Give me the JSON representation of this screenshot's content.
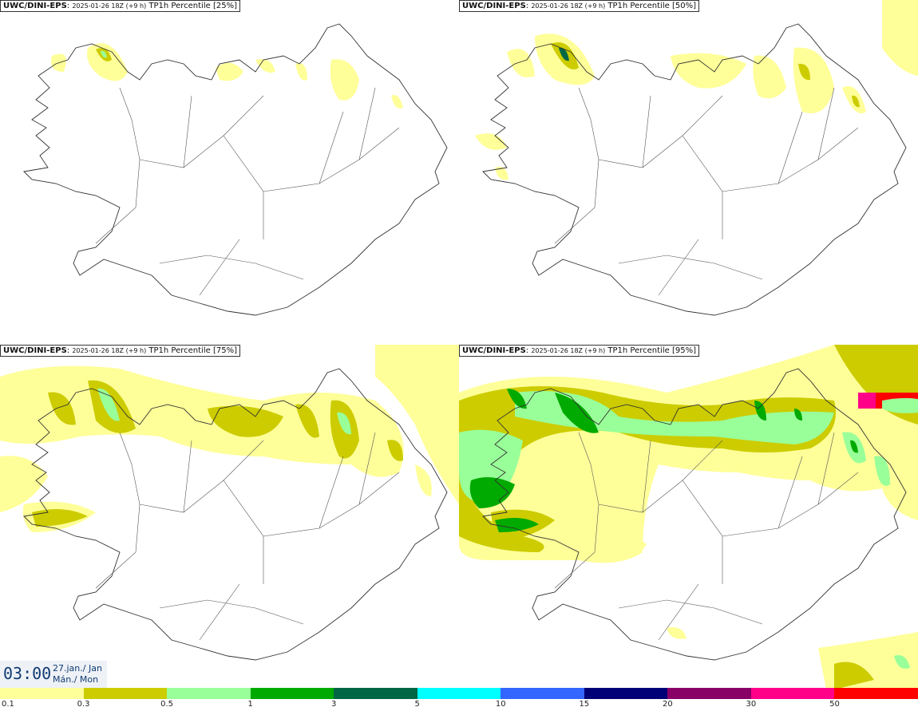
{
  "panels": [
    {
      "id": "p25",
      "model": "UWC/DINI-EPS",
      "run": "2025-01-26 18Z (+9 h)",
      "label": "TP1h Percentile [25%]"
    },
    {
      "id": "p50",
      "model": "UWC/DINI-EPS",
      "run": "2025-01-26 18Z (+9 h)",
      "label": "TP1h Percentile [50%]"
    },
    {
      "id": "p75",
      "model": "UWC/DINI-EPS",
      "run": "2025-01-26 18Z (+9 h)",
      "label": "TP1h Percentile [75%]"
    },
    {
      "id": "p95",
      "model": "UWC/DINI-EPS",
      "run": "2025-01-26 18Z (+9 h)",
      "label": "TP1h Percentile [95%]"
    }
  ],
  "time": {
    "clock": "03:00",
    "date_line1": "27.jan./ Jan",
    "date_line2": "Mán./ Mon"
  },
  "legend": {
    "colors": [
      "#ffff99",
      "#cccc00",
      "#99ff99",
      "#00aa00",
      "#006644",
      "#00ffff",
      "#3366ff",
      "#000077",
      "#880066",
      "#ff0088",
      "#ff0000"
    ],
    "ticks": [
      "0.1",
      "0.3",
      "0.5",
      "1",
      "3",
      "5",
      "10",
      "15",
      "20",
      "30",
      "50"
    ]
  }
}
